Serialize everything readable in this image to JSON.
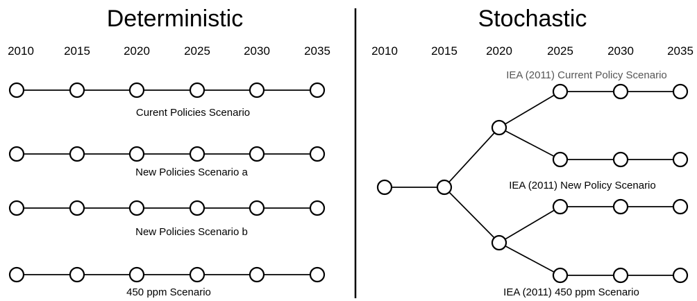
{
  "deterministic": {
    "title": "Deterministic",
    "years": [
      "2010",
      "2015",
      "2020",
      "2025",
      "2030",
      "2035"
    ],
    "scenarios": [
      "Curent Policies Scenario",
      "New Policies Scenario a",
      "New Policies Scenario b",
      "450 ppm Scenario"
    ]
  },
  "stochastic": {
    "title": "Stochastic",
    "years": [
      "2010",
      "2015",
      "2020",
      "2025",
      "2030",
      "2035"
    ],
    "scenarios": [
      "IEA (2011) Current Policy Scenario",
      "IEA (2011) New Policy Scenario",
      "IEA (2011) 450 ppm Scenario"
    ]
  },
  "colors": {
    "line": "#000000",
    "node_fill": "#ffffff",
    "gray_label": "#555555"
  }
}
